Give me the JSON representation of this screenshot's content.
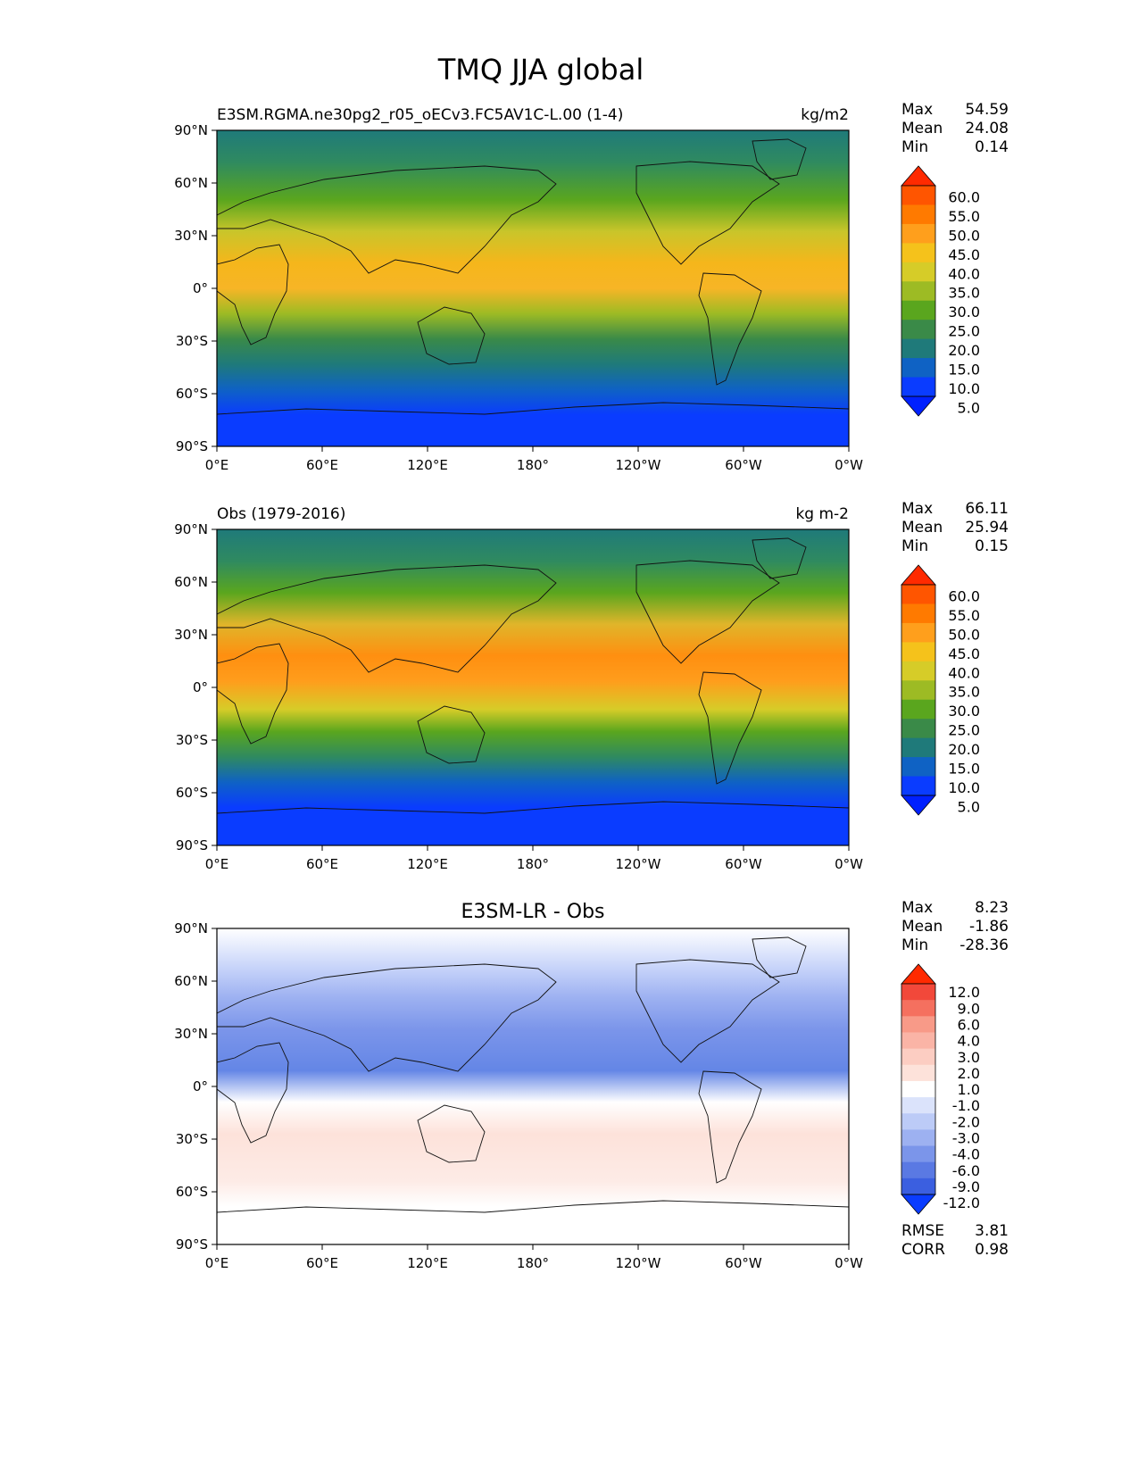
{
  "title": "TMQ JJA global",
  "panels": [
    {
      "id": "model",
      "left_title": "E3SM.RGMA.ne30pg2_r05_oECv3.FC5AV1C-L.00 (1-4)",
      "center_title": "",
      "units": "kg/m2",
      "stats": [
        {
          "label": "Max",
          "value": "54.59"
        },
        {
          "label": "Mean",
          "value": "24.08"
        },
        {
          "label": "Min",
          "value": "0.14"
        }
      ],
      "colorbar": {
        "labels": [
          "60.0",
          "55.0",
          "50.0",
          "45.0",
          "40.0",
          "35.0",
          "30.0",
          "25.0",
          "20.0",
          "15.0",
          "10.0",
          "5.0"
        ],
        "colors": [
          "#ff2a00",
          "#ff5500",
          "#ff7a00",
          "#ff9f1c",
          "#f5c21b",
          "#d6cc28",
          "#9dbb24",
          "#5aa61e",
          "#3a8a48",
          "#1f7a7a",
          "#0f62c4",
          "#0a3cff",
          "#0020ff"
        ]
      },
      "x_ticks": [
        "0°E",
        "60°E",
        "120°E",
        "180°",
        "120°W",
        "60°W",
        "0°W"
      ],
      "y_ticks": [
        "90°N",
        "60°N",
        "30°N",
        "0°",
        "30°S",
        "60°S",
        "90°S"
      ],
      "rmse": null
    },
    {
      "id": "obs",
      "left_title": "Obs (1979-2016)",
      "center_title": "",
      "units": "kg m-2",
      "stats": [
        {
          "label": "Max",
          "value": "66.11"
        },
        {
          "label": "Mean",
          "value": "25.94"
        },
        {
          "label": "Min",
          "value": "0.15"
        }
      ],
      "colorbar": {
        "labels": [
          "60.0",
          "55.0",
          "50.0",
          "45.0",
          "40.0",
          "35.0",
          "30.0",
          "25.0",
          "20.0",
          "15.0",
          "10.0",
          "5.0"
        ],
        "colors": [
          "#ff2a00",
          "#ff5500",
          "#ff7a00",
          "#ff9f1c",
          "#f5c21b",
          "#d6cc28",
          "#9dbb24",
          "#5aa61e",
          "#3a8a48",
          "#1f7a7a",
          "#0f62c4",
          "#0a3cff",
          "#0020ff"
        ]
      },
      "x_ticks": [
        "0°E",
        "60°E",
        "120°E",
        "180°",
        "120°W",
        "60°W",
        "0°W"
      ],
      "y_ticks": [
        "90°N",
        "60°N",
        "30°N",
        "0°",
        "30°S",
        "60°S",
        "90°S"
      ],
      "rmse": null
    },
    {
      "id": "diff",
      "left_title": "",
      "center_title": "E3SM-LR - Obs",
      "units": "",
      "stats": [
        {
          "label": "Max",
          "value": "8.23"
        },
        {
          "label": "Mean",
          "value": "-1.86"
        },
        {
          "label": "Min",
          "value": "-28.36"
        }
      ],
      "colorbar": {
        "labels": [
          "12.0",
          "9.0",
          "6.0",
          "4.0",
          "3.0",
          "2.0",
          "1.0",
          "-1.0",
          "-2.0",
          "-3.0",
          "-4.0",
          "-6.0",
          "-9.0",
          "-12.0"
        ],
        "colors": [
          "#ff2a00",
          "#f2483a",
          "#f5705f",
          "#f89a88",
          "#fab4a6",
          "#fccdc2",
          "#fde2da",
          "#ffffff",
          "#dbe3fb",
          "#bccbf7",
          "#9db1f1",
          "#7b95ea",
          "#5a79e3",
          "#3b5fe0",
          "#0a3cff"
        ]
      },
      "x_ticks": [
        "0°E",
        "60°E",
        "120°E",
        "180°",
        "120°W",
        "60°W",
        "0°W"
      ],
      "y_ticks": [
        "90°N",
        "60°N",
        "30°N",
        "0°",
        "30°S",
        "60°S",
        "90°S"
      ],
      "rmse": [
        {
          "label": "RMSE",
          "value": "3.81"
        },
        {
          "label": "CORR",
          "value": "0.98"
        }
      ]
    }
  ]
}
